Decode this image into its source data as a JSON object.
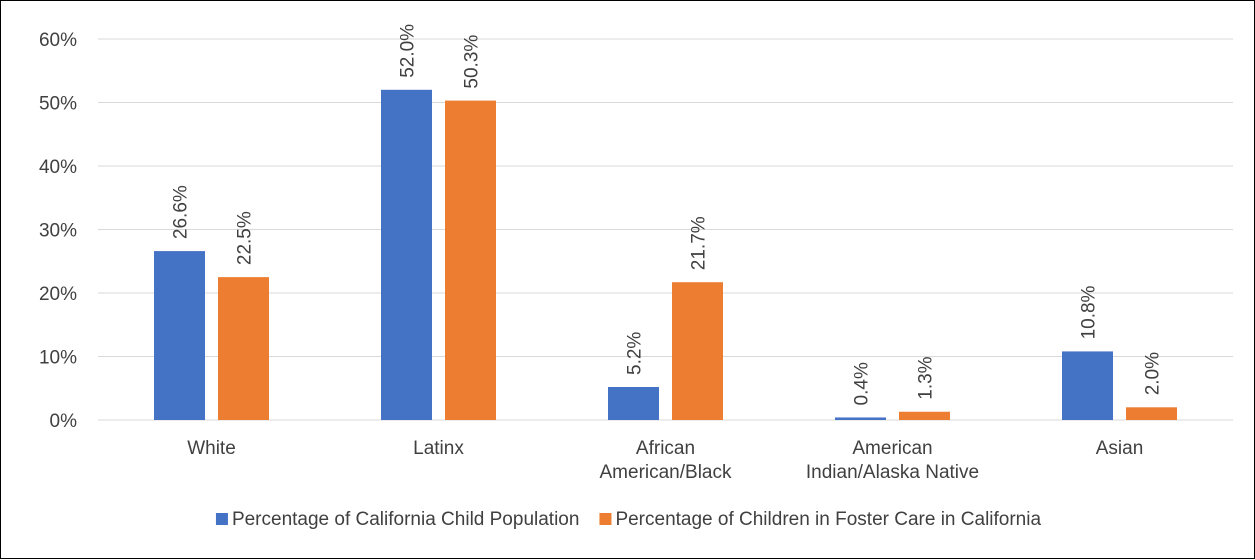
{
  "chart_data": {
    "type": "bar",
    "categories": [
      [
        "White"
      ],
      [
        "Latinx"
      ],
      [
        "African",
        "American/Black"
      ],
      [
        "American",
        "Indian/Alaska Native"
      ],
      [
        "Asian"
      ]
    ],
    "series": [
      {
        "name": "Percentage of California Child Population",
        "color": "#4472c4",
        "values": [
          26.6,
          52.0,
          5.2,
          0.4,
          10.8
        ],
        "labels": [
          "26.6%",
          "52.0%",
          "5.2%",
          "0.4%",
          "10.8%"
        ]
      },
      {
        "name": "Percentage of Children in Foster Care in California",
        "color": "#ed7d31",
        "values": [
          22.5,
          50.3,
          21.7,
          1.3,
          2.0
        ],
        "labels": [
          "22.5%",
          "50.3%",
          "21.7%",
          "1.3%",
          "2.0%"
        ]
      }
    ],
    "yticks": [
      "0%",
      "10%",
      "20%",
      "30%",
      "40%",
      "50%",
      "60%"
    ],
    "ylim": [
      0,
      60
    ],
    "grid": true,
    "legend": "bottom",
    "title": "",
    "xlabel": "",
    "ylabel": ""
  }
}
